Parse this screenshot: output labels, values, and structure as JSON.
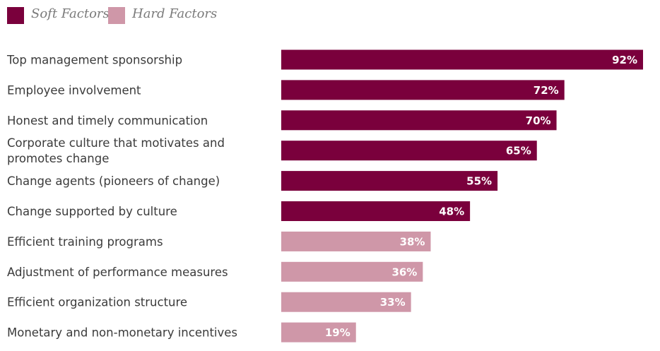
{
  "colors": {
    "soft": "#7a003c",
    "hard": "#cf97a8"
  },
  "legend": [
    {
      "label": "Soft Factors",
      "group": "soft"
    },
    {
      "label": "Hard Factors",
      "group": "hard"
    }
  ],
  "chart_data": {
    "type": "bar",
    "orientation": "horizontal",
    "unit": "%",
    "xlim": [
      0,
      92
    ],
    "grid": false,
    "legend_position": "top-left",
    "categories": [
      [
        "Top management sponsorship"
      ],
      [
        "Employee involvement"
      ],
      [
        "Honest and timely communication"
      ],
      [
        "Corporate culture that motivates and",
        "promotes change"
      ],
      [
        "Change agents (pioneers of change)"
      ],
      [
        "Change supported by culture"
      ],
      [
        "Efficient training programs"
      ],
      [
        "Adjustment of performance measures"
      ],
      [
        "Efficient organization structure"
      ],
      [
        "Monetary and non-monetary incentives"
      ]
    ],
    "values": [
      92,
      72,
      70,
      65,
      55,
      48,
      38,
      36,
      33,
      19
    ],
    "groups": [
      "soft",
      "soft",
      "soft",
      "soft",
      "soft",
      "soft",
      "hard",
      "hard",
      "hard",
      "hard"
    ],
    "value_labels": [
      "92%",
      "72%",
      "70%",
      "65%",
      "55%",
      "48%",
      "38%",
      "36%",
      "33%",
      "19%"
    ]
  }
}
